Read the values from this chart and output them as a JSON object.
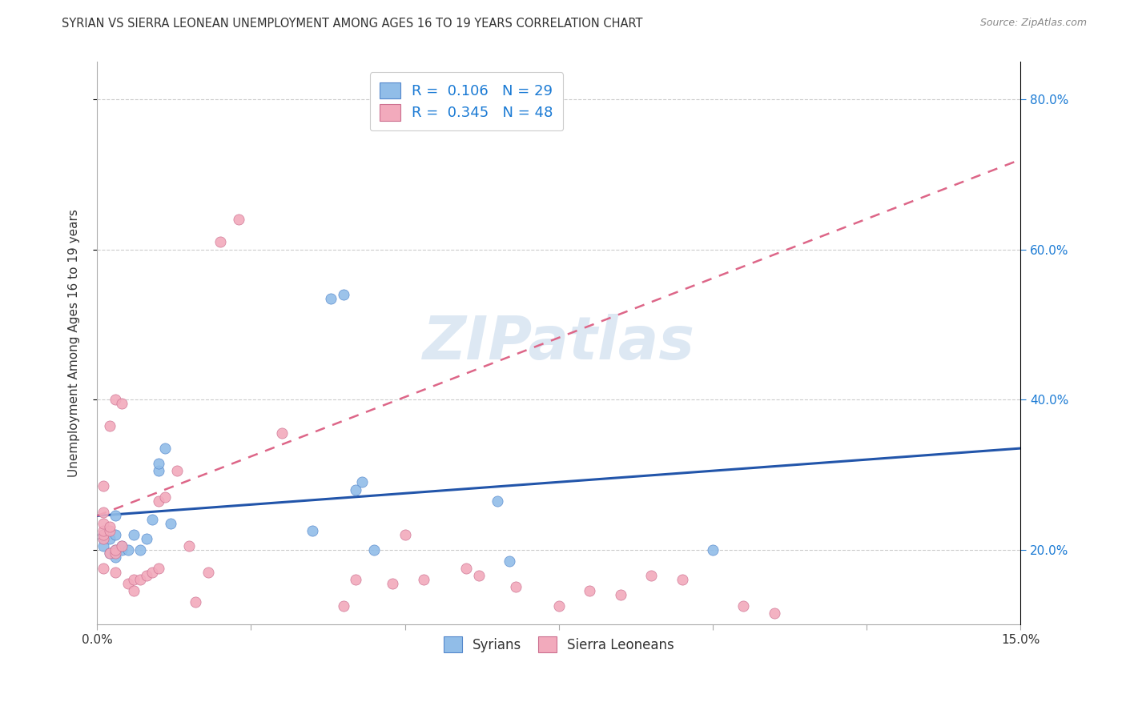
{
  "title": "SYRIAN VS SIERRA LEONEAN UNEMPLOYMENT AMONG AGES 16 TO 19 YEARS CORRELATION CHART",
  "source": "Source: ZipAtlas.com",
  "ylabel": "Unemployment Among Ages 16 to 19 years",
  "xlim": [
    0.0,
    0.15
  ],
  "ylim": [
    0.1,
    0.85
  ],
  "xticks": [
    0.0,
    0.025,
    0.05,
    0.075,
    0.1,
    0.125,
    0.15
  ],
  "xtick_labels": [
    "0.0%",
    "",
    "",
    "",
    "",
    "",
    "15.0%"
  ],
  "yticks": [
    0.2,
    0.4,
    0.6,
    0.8
  ],
  "ytick_labels": [
    "20.0%",
    "40.0%",
    "60.0%",
    "80.0%"
  ],
  "blue_dot_color": "#91BDE8",
  "blue_dot_edge": "#5588CC",
  "pink_dot_color": "#F2AABC",
  "pink_dot_edge": "#CC7090",
  "blue_line_color": "#2255AA",
  "pink_line_color": "#DD6688",
  "legend_text_color": "#1A7AD4",
  "right_tick_color": "#1A7AD4",
  "grid_color": "#CCCCCC",
  "text_color": "#333333",
  "source_color": "#888888",
  "watermark_color": "#CCDDEE",
  "background": "#FFFFFF",
  "syrians_x": [
    0.001,
    0.001,
    0.001,
    0.002,
    0.002,
    0.003,
    0.003,
    0.003,
    0.003,
    0.004,
    0.004,
    0.005,
    0.006,
    0.007,
    0.008,
    0.009,
    0.01,
    0.01,
    0.011,
    0.012,
    0.035,
    0.038,
    0.04,
    0.042,
    0.043,
    0.045,
    0.065,
    0.067,
    0.1
  ],
  "syrians_y": [
    0.22,
    0.215,
    0.205,
    0.215,
    0.195,
    0.2,
    0.22,
    0.245,
    0.19,
    0.2,
    0.205,
    0.2,
    0.22,
    0.2,
    0.215,
    0.24,
    0.305,
    0.315,
    0.335,
    0.235,
    0.225,
    0.535,
    0.54,
    0.28,
    0.29,
    0.2,
    0.265,
    0.185,
    0.2
  ],
  "sierraleoneans_x": [
    0.001,
    0.001,
    0.001,
    0.001,
    0.001,
    0.001,
    0.001,
    0.002,
    0.002,
    0.002,
    0.002,
    0.003,
    0.003,
    0.003,
    0.003,
    0.004,
    0.004,
    0.005,
    0.006,
    0.006,
    0.007,
    0.008,
    0.009,
    0.01,
    0.01,
    0.011,
    0.013,
    0.015,
    0.016,
    0.018,
    0.02,
    0.023,
    0.03,
    0.04,
    0.042,
    0.048,
    0.05,
    0.053,
    0.06,
    0.062,
    0.068,
    0.075,
    0.08,
    0.085,
    0.09,
    0.095,
    0.105,
    0.11
  ],
  "sierraleoneans_y": [
    0.215,
    0.22,
    0.225,
    0.235,
    0.25,
    0.285,
    0.175,
    0.195,
    0.225,
    0.23,
    0.365,
    0.195,
    0.2,
    0.4,
    0.17,
    0.205,
    0.395,
    0.155,
    0.145,
    0.16,
    0.16,
    0.165,
    0.17,
    0.175,
    0.265,
    0.27,
    0.305,
    0.205,
    0.13,
    0.17,
    0.61,
    0.64,
    0.355,
    0.125,
    0.16,
    0.155,
    0.22,
    0.16,
    0.175,
    0.165,
    0.15,
    0.125,
    0.145,
    0.14,
    0.165,
    0.16,
    0.125,
    0.115
  ],
  "blue_trendline": [
    0.0,
    0.15,
    0.245,
    0.335
  ],
  "pink_trendline": [
    0.0,
    0.15,
    0.245,
    0.72
  ]
}
